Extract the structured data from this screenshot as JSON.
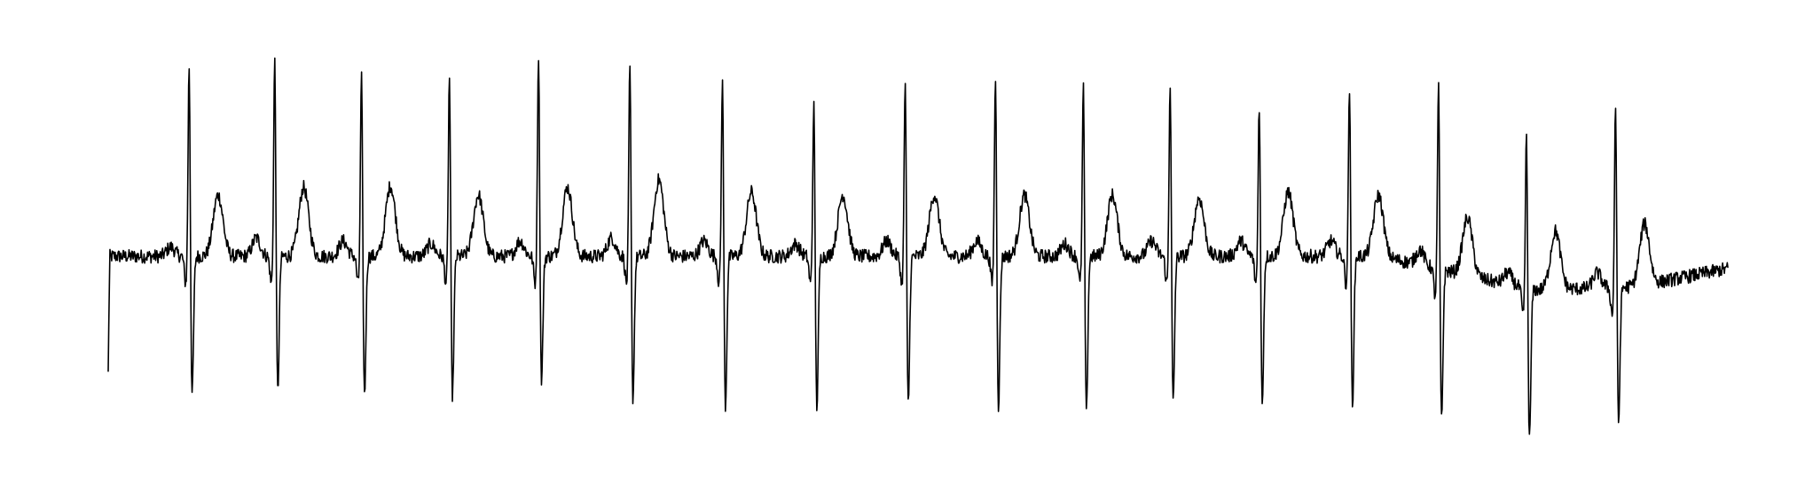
{
  "chart_data": {
    "type": "line",
    "title": "",
    "xlabel": "",
    "ylabel": "",
    "axes_visible": false,
    "grid": false,
    "line_color": "#000000",
    "background_color": "#ffffff",
    "xlim": [
      0,
      1400
    ],
    "ylim": [
      -1.25,
      1.5
    ],
    "series": [
      {
        "name": "",
        "baseline": [
          {
            "x": 0,
            "y": 0.0
          },
          {
            "x": 1100,
            "y": 0.0
          },
          {
            "x": 1230,
            "y": -0.22
          },
          {
            "x": 1320,
            "y": -0.2
          },
          {
            "x": 1400,
            "y": -0.08
          }
        ],
        "beats": [
          {
            "x": 70,
            "r": 1.35,
            "s": -0.92,
            "t": 0.4,
            "p": 0.06
          },
          {
            "x": 144,
            "r": 1.38,
            "s": -0.9,
            "t": 0.45,
            "p": 0.12
          },
          {
            "x": 219,
            "r": 1.28,
            "s": -0.93,
            "t": 0.46,
            "p": 0.1
          },
          {
            "x": 295,
            "r": 1.28,
            "s": -0.93,
            "t": 0.4,
            "p": 0.08
          },
          {
            "x": 372,
            "r": 1.42,
            "s": -0.83,
            "t": 0.45,
            "p": 0.1
          },
          {
            "x": 451,
            "r": 1.35,
            "s": -0.95,
            "t": 0.5,
            "p": 0.12
          },
          {
            "x": 531,
            "r": 1.27,
            "s": -1.0,
            "t": 0.42,
            "p": 0.1
          },
          {
            "x": 610,
            "r": 1.1,
            "s": -1.0,
            "t": 0.4,
            "p": 0.08
          },
          {
            "x": 689,
            "r": 1.25,
            "s": -0.98,
            "t": 0.4,
            "p": 0.1
          },
          {
            "x": 767,
            "r": 1.28,
            "s": -1.0,
            "t": 0.4,
            "p": 0.1
          },
          {
            "x": 843,
            "r": 1.22,
            "s": -1.05,
            "t": 0.4,
            "p": 0.08
          },
          {
            "x": 918,
            "r": 1.25,
            "s": -0.98,
            "t": 0.38,
            "p": 0.1
          },
          {
            "x": 995,
            "r": 1.1,
            "s": -0.97,
            "t": 0.42,
            "p": 0.1
          },
          {
            "x": 1073,
            "r": 1.22,
            "s": -0.98,
            "t": 0.4,
            "p": 0.1
          },
          {
            "x": 1150,
            "r": 1.3,
            "s": -1.0,
            "t": 0.38,
            "p": 0.1
          },
          {
            "x": 1226,
            "r": 1.1,
            "s": -1.0,
            "t": 0.38,
            "p": 0.08
          },
          {
            "x": 1303,
            "r": 1.3,
            "s": -0.9,
            "t": 0.4,
            "p": 0.1
          }
        ],
        "noise_amplitude": 0.045
      }
    ]
  }
}
